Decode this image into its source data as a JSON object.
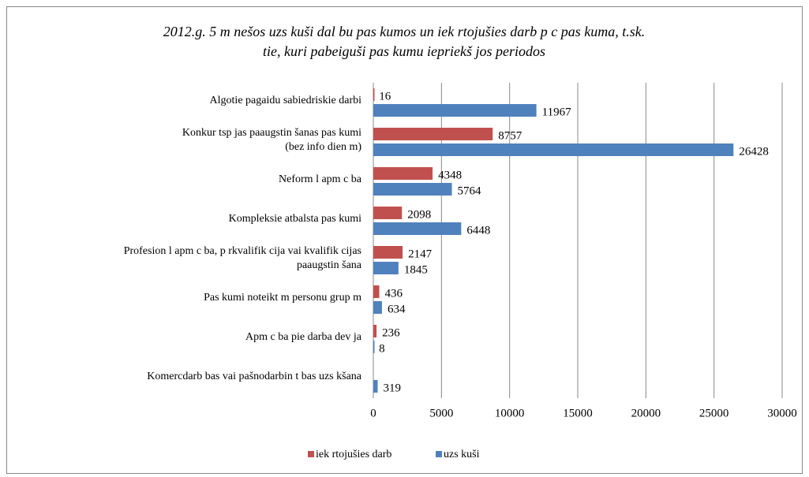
{
  "chart_data": {
    "type": "hbar",
    "title": [
      "2012.g. 5 m nešos uzs kuši dal bu pas kumos un iek rtojušies darb p c pas kuma, t.sk.",
      "tie, kuri pabeiguši pas kumu iepriekš jos periodos"
    ],
    "categories": [
      [
        "Algotie pagaidu sabiedriskie darbi"
      ],
      [
        "Konkur tsp jas paaugstin šanas pas kumi",
        "(bez info dien m)"
      ],
      [
        "Neform l  apm c ba"
      ],
      [
        "Kompleksie atbalsta pas kumi"
      ],
      [
        "Profesion l  apm c ba, p rkvalifik cija vai kvalifik cijas",
        "paaugstin šana"
      ],
      [
        "Pas kumi noteikt m personu grup m"
      ],
      [
        "Apm  c ba pie darba dev  ja"
      ],
      [
        "Komercdarb bas vai pašnodarbin  t bas uzs  kšana"
      ]
    ],
    "series": [
      {
        "name": "iek rtojušies darb",
        "color": "#c0504d",
        "values": [
          16,
          8757,
          4348,
          2098,
          2147,
          436,
          236,
          null
        ]
      },
      {
        "name": "uzs kuši",
        "color": "#4f81bd",
        "values": [
          11967,
          26428,
          5764,
          6448,
          1845,
          634,
          8,
          319
        ]
      }
    ],
    "xlim": [
      0,
      30000
    ],
    "xticks": [
      0,
      5000,
      10000,
      15000,
      20000,
      25000,
      30000
    ],
    "grid": true
  }
}
